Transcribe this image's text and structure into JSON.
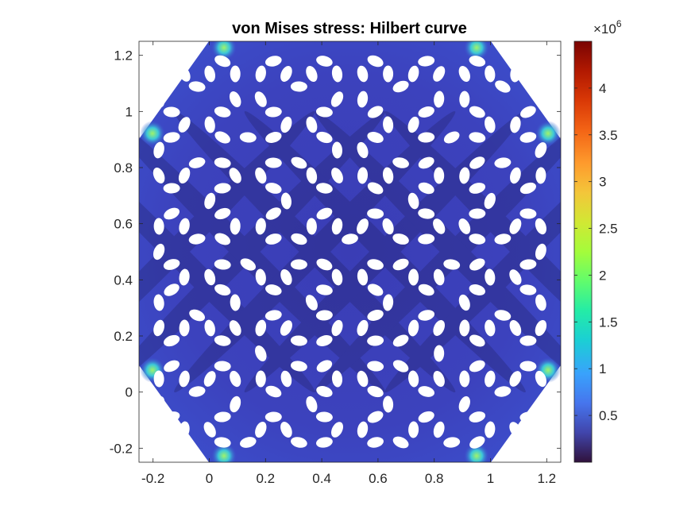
{
  "chart_data": {
    "type": "heatmap",
    "title": "von Mises stress: Hilbert curve",
    "xlabel": "",
    "ylabel": "",
    "xlim": [
      -0.25,
      1.25
    ],
    "ylim": [
      -0.25,
      1.25
    ],
    "x_ticks": [
      -0.2,
      0,
      0.2,
      0.4,
      0.6,
      0.8,
      1,
      1.2
    ],
    "x_tick_labels": [
      "-0.2",
      "0",
      "0.2",
      "0.4",
      "0.6",
      "0.8",
      "1",
      "1.2"
    ],
    "y_ticks": [
      -0.2,
      0,
      0.2,
      0.4,
      0.6,
      0.8,
      1,
      1.2
    ],
    "y_tick_labels": [
      "-0.2",
      "0",
      "0.2",
      "0.4",
      "0.6",
      "0.8",
      "1",
      "1.2"
    ],
    "grid": false,
    "colorbar": {
      "colormap": "turbo",
      "range": [
        0,
        4500000
      ],
      "ticks": [
        0.5,
        1,
        1.5,
        2,
        2.5,
        3,
        3.5,
        4
      ],
      "tick_labels": [
        "0.5",
        "1",
        "1.5",
        "2",
        "2.5",
        "3",
        "3.5",
        "4"
      ],
      "multiplier_base": "×10",
      "multiplier_exponent": "6",
      "placement": "right"
    },
    "field": {
      "shape": "octagon with chamfered corners",
      "background_stress": 400000,
      "peak_stress_corners": 2000000,
      "perforation": "elliptical holes arranged along a Hilbert curve pattern"
    }
  },
  "colors": {
    "field_base": "#3b3fb8",
    "field_dark": "#2a2a7c",
    "hole": "#ffffff",
    "hot_spot": "#8ef06a"
  }
}
